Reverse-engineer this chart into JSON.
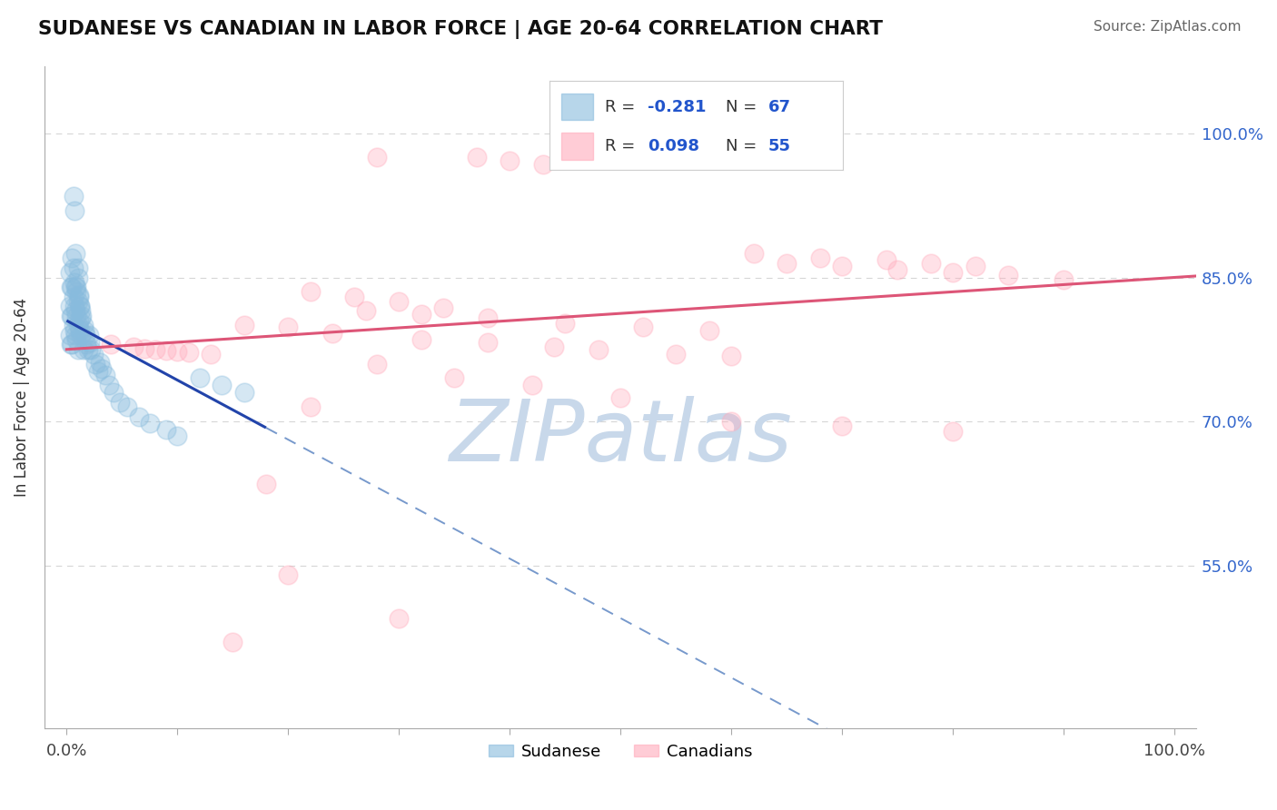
{
  "title": "SUDANESE VS CANADIAN IN LABOR FORCE | AGE 20-64 CORRELATION CHART",
  "source_text": "Source: ZipAtlas.com",
  "ylabel": "In Labor Force | Age 20-64",
  "xlim": [
    -0.02,
    1.02
  ],
  "ylim": [
    0.38,
    1.07
  ],
  "ytick_positions": [
    0.55,
    0.7,
    0.85,
    1.0
  ],
  "ytick_labels": [
    "55.0%",
    "70.0%",
    "85.0%",
    "100.0%"
  ],
  "xtick_positions": [
    0.0,
    0.1,
    0.2,
    0.3,
    0.4,
    0.5,
    0.6,
    0.7,
    0.8,
    0.9,
    1.0
  ],
  "xtick_labels": [
    "0.0%",
    "",
    "",
    "",
    "",
    "",
    "",
    "",
    "",
    "",
    "100.0%"
  ],
  "grid_color": "#cccccc",
  "background_color": "#ffffff",
  "blue_color": "#88bbdd",
  "pink_color": "#ffaabb",
  "blue_line_color": "#2244aa",
  "pink_line_color": "#dd5577",
  "blue_R": -0.281,
  "blue_N": 67,
  "pink_R": 0.098,
  "pink_N": 55,
  "sudanese_label": "Sudanese",
  "canadians_label": "Canadians",
  "watermark": "ZIPatlas",
  "watermark_zip_color": "#c5cfe0",
  "watermark_atlas_color": "#c8d8ea",
  "blue_trend_solid_end": 0.18,
  "blue_trend_start_y": 0.805,
  "blue_trend_slope": -0.62,
  "pink_trend_start_y": 0.775,
  "pink_trend_slope": 0.075,
  "sudanese_x": [
    0.003,
    0.003,
    0.003,
    0.004,
    0.004,
    0.004,
    0.005,
    0.005,
    0.005,
    0.005,
    0.006,
    0.006,
    0.006,
    0.007,
    0.007,
    0.007,
    0.008,
    0.008,
    0.008,
    0.009,
    0.009,
    0.009,
    0.01,
    0.01,
    0.01,
    0.01,
    0.011,
    0.011,
    0.012,
    0.012,
    0.013,
    0.013,
    0.014,
    0.015,
    0.015,
    0.016,
    0.017,
    0.018,
    0.019,
    0.02,
    0.021,
    0.022,
    0.024,
    0.026,
    0.028,
    0.03,
    0.032,
    0.035,
    0.038,
    0.042,
    0.048,
    0.055,
    0.065,
    0.075,
    0.09,
    0.1,
    0.12,
    0.14,
    0.16,
    0.006,
    0.007,
    0.008,
    0.009,
    0.01,
    0.011,
    0.012,
    0.013
  ],
  "sudanese_y": [
    0.855,
    0.82,
    0.79,
    0.84,
    0.81,
    0.78,
    0.87,
    0.84,
    0.81,
    0.78,
    0.86,
    0.83,
    0.8,
    0.845,
    0.82,
    0.795,
    0.84,
    0.815,
    0.79,
    0.835,
    0.81,
    0.785,
    0.85,
    0.825,
    0.8,
    0.775,
    0.83,
    0.805,
    0.82,
    0.795,
    0.815,
    0.79,
    0.81,
    0.8,
    0.775,
    0.795,
    0.79,
    0.78,
    0.775,
    0.79,
    0.782,
    0.775,
    0.77,
    0.76,
    0.752,
    0.762,
    0.755,
    0.748,
    0.738,
    0.73,
    0.72,
    0.715,
    0.705,
    0.698,
    0.692,
    0.685,
    0.745,
    0.738,
    0.73,
    0.935,
    0.92,
    0.875,
    0.84,
    0.86,
    0.832,
    0.82,
    0.808
  ],
  "canadians_x": [
    0.28,
    0.37,
    0.4,
    0.43,
    0.56,
    0.62,
    0.68,
    0.74,
    0.78,
    0.82,
    0.22,
    0.26,
    0.3,
    0.34,
    0.27,
    0.32,
    0.38,
    0.45,
    0.52,
    0.58,
    0.16,
    0.2,
    0.24,
    0.32,
    0.38,
    0.44,
    0.48,
    0.55,
    0.6,
    0.04,
    0.06,
    0.07,
    0.08,
    0.09,
    0.1,
    0.11,
    0.13,
    0.65,
    0.7,
    0.75,
    0.8,
    0.85,
    0.9,
    0.18,
    0.22,
    0.28,
    0.35,
    0.42,
    0.5,
    0.6,
    0.7,
    0.8,
    0.15,
    0.2,
    0.3
  ],
  "canadians_y": [
    0.975,
    0.975,
    0.972,
    0.968,
    0.975,
    0.875,
    0.87,
    0.868,
    0.865,
    0.862,
    0.835,
    0.83,
    0.825,
    0.818,
    0.815,
    0.812,
    0.808,
    0.802,
    0.798,
    0.795,
    0.8,
    0.798,
    0.792,
    0.785,
    0.782,
    0.778,
    0.775,
    0.77,
    0.768,
    0.78,
    0.778,
    0.776,
    0.775,
    0.774,
    0.773,
    0.772,
    0.77,
    0.865,
    0.862,
    0.858,
    0.855,
    0.852,
    0.848,
    0.635,
    0.715,
    0.76,
    0.745,
    0.738,
    0.725,
    0.7,
    0.695,
    0.69,
    0.47,
    0.54,
    0.495
  ]
}
